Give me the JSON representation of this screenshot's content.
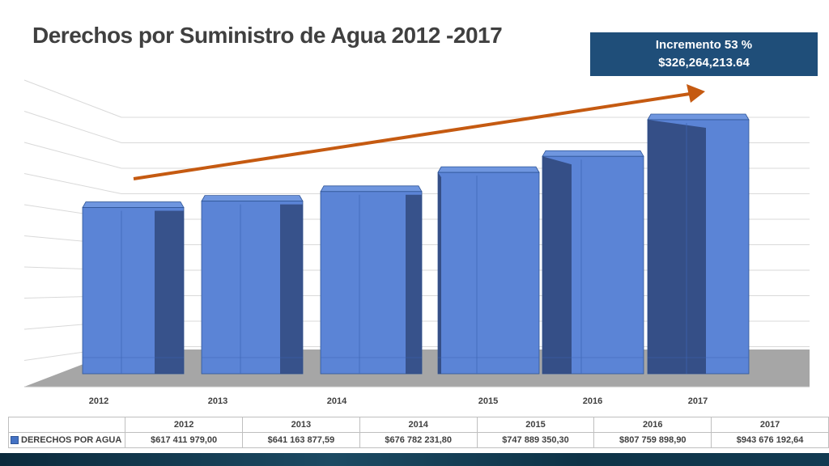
{
  "title": "Derechos por Suministro de Agua 2012 -2017",
  "callout": {
    "line1": "Incremento 53 %",
    "line2": "$326,264,213.64"
  },
  "table": {
    "series_label": "DERECHOS POR AGUA",
    "headers": [
      "2012",
      "2013",
      "2014",
      "2015",
      "2016",
      "2017"
    ],
    "values": [
      "$617 411 979,00",
      "$641 163 877,59",
      "$676 782 231,80",
      "$747 889 350,30",
      "$807 759 898,90",
      "$943 676 192,64"
    ]
  },
  "colors": {
    "bar_front": "#5b84d6",
    "bar_side": "#31497e",
    "bar_top": "#6f96df",
    "floor": "#a6a6a6",
    "arrow": "#c55a11",
    "callout_bg": "#1f4e79"
  },
  "chart_data": {
    "type": "bar",
    "style": "3d-clustered-column",
    "categories": [
      "2012",
      "2013",
      "2014",
      "2015",
      "2016",
      "2017"
    ],
    "series": [
      {
        "name": "DERECHOS POR AGUA",
        "values": [
          617411979.0,
          641163877.59,
          676782231.8,
          747889350.3,
          807759898.9,
          943676192.64
        ]
      }
    ],
    "title": "Derechos por Suministro de Agua 2012 -2017",
    "xlabel": "",
    "ylabel": "",
    "grid": true,
    "legend": "data-table"
  }
}
